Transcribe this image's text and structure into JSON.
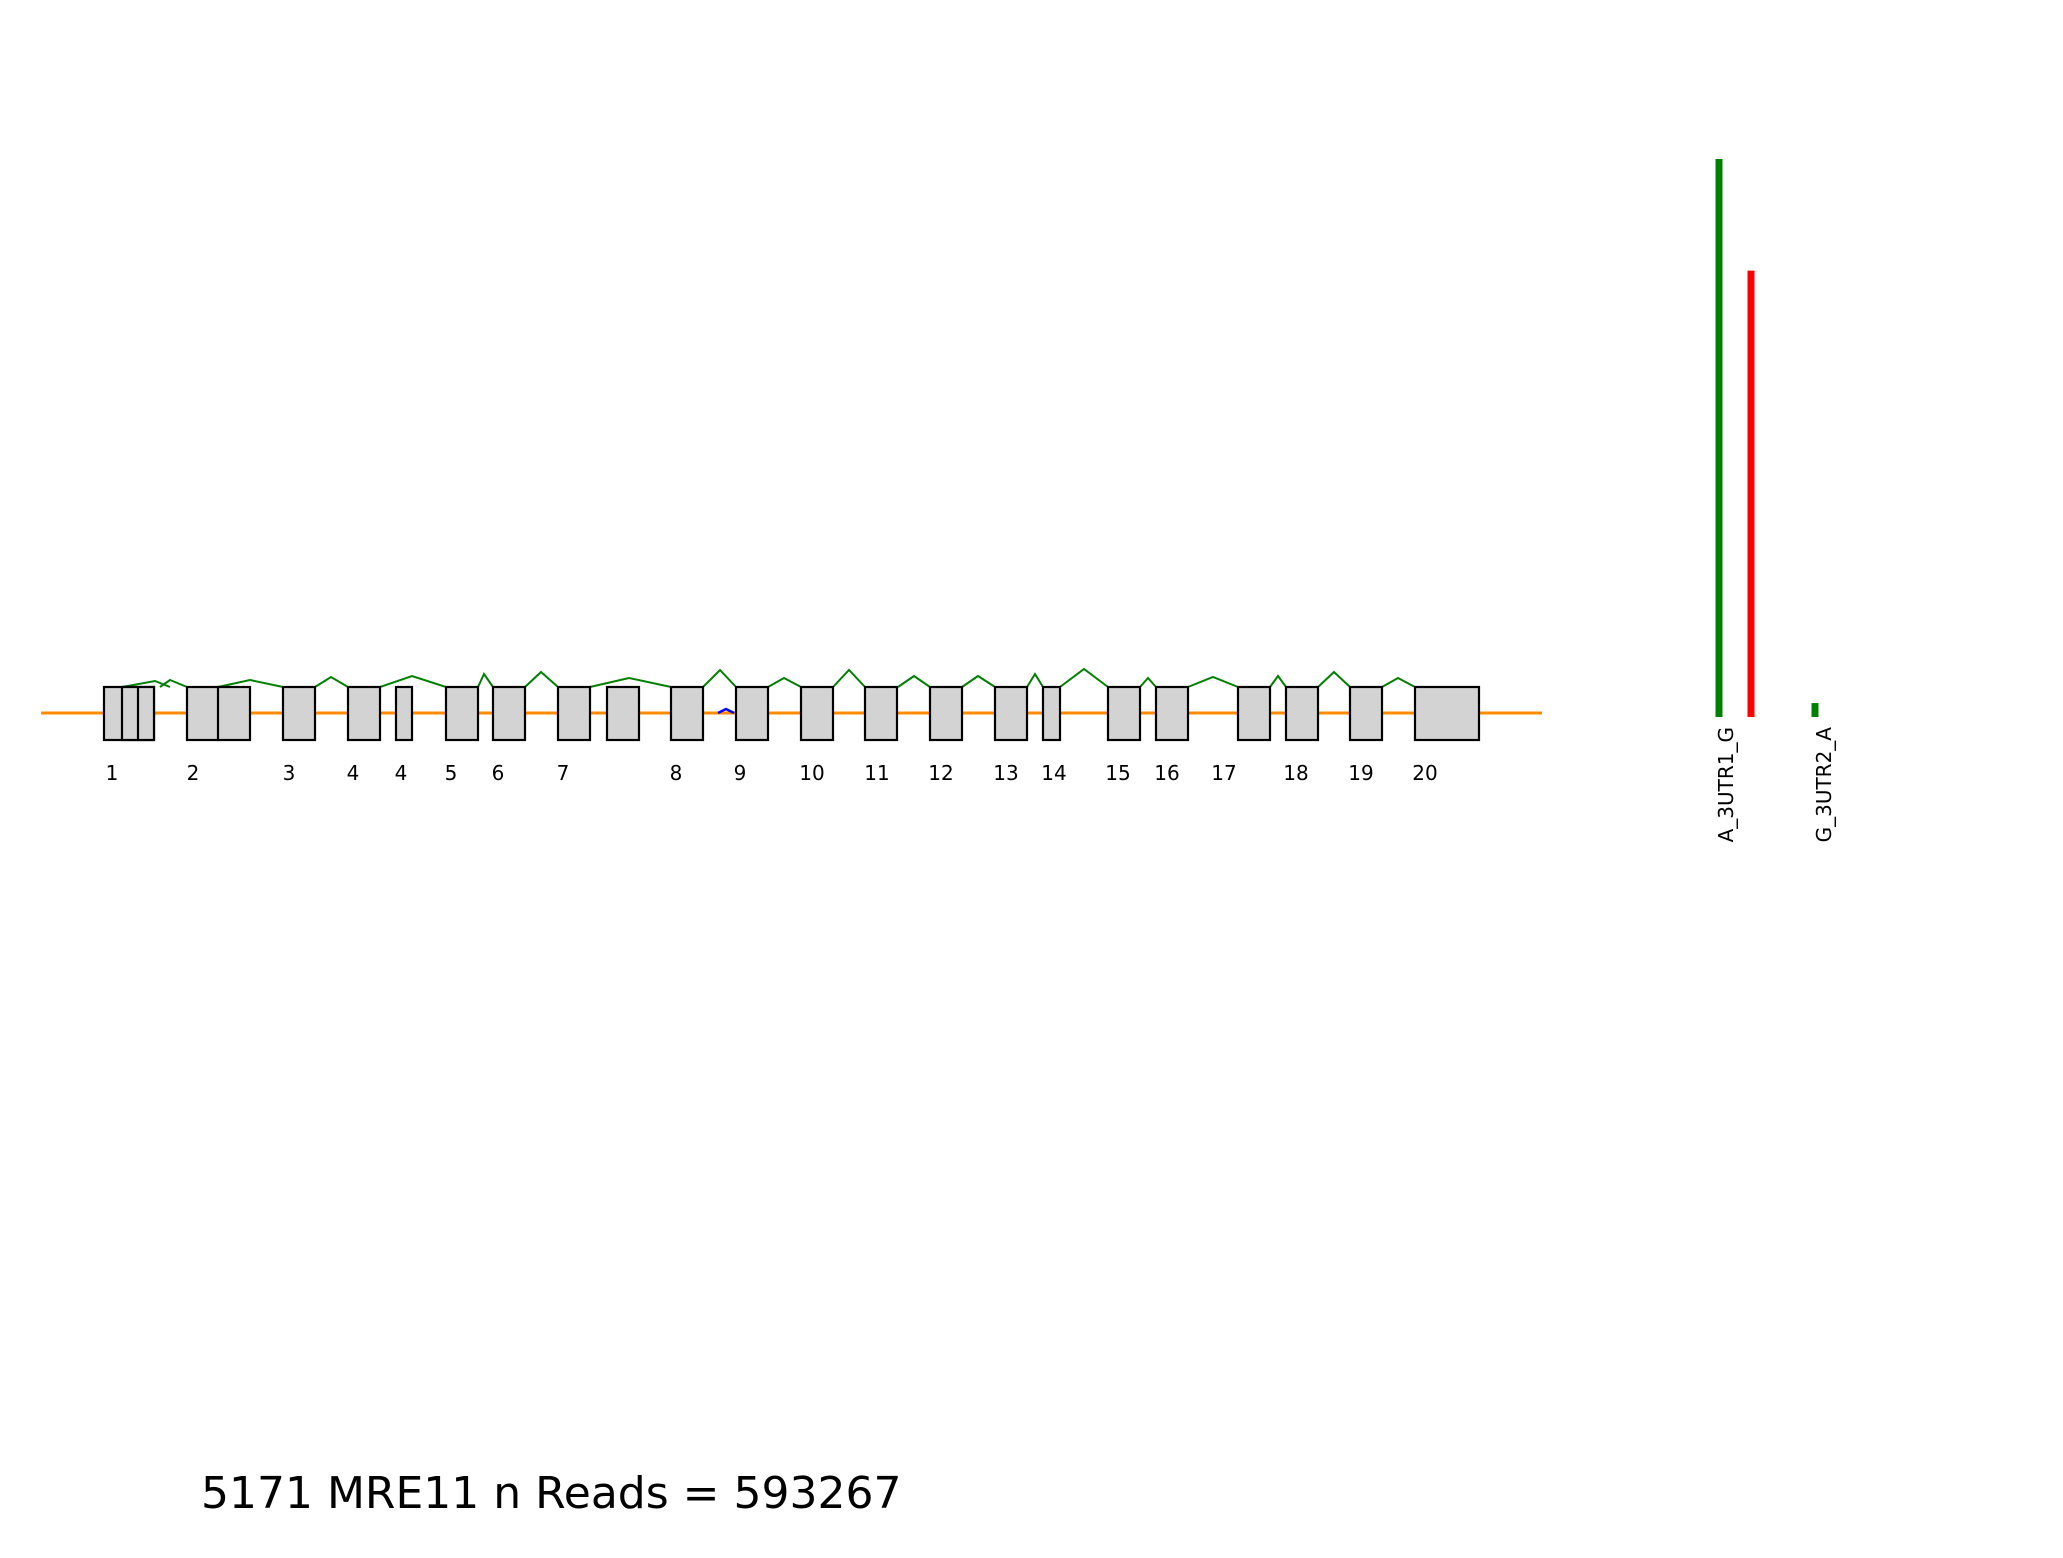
{
  "title": "5171 MRE11 n Reads = 593267",
  "colors": {
    "intron_line": "#ff8c00",
    "exon_fill": "#d3d3d3",
    "exon_stroke": "#000000",
    "junction_main": "#008000",
    "junction_alt": "#0000ff",
    "bar_green": "#008000",
    "bar_red": "#ff0000"
  },
  "exon_labels": [
    "1",
    "2",
    "3",
    "4",
    "4",
    "5",
    "6",
    "7",
    "8",
    "9",
    "10",
    "11",
    "12",
    "13",
    "14",
    "15",
    "16",
    "17",
    "18",
    "19",
    "20"
  ],
  "utr_bars": [
    {
      "label": "A_3UTR1_G",
      "values": [
        {
          "color": "green",
          "value": 1.0
        },
        {
          "color": "red",
          "value": 0.8
        }
      ]
    },
    {
      "label": "G_3UTR2_A",
      "values": [
        {
          "color": "green",
          "value": 0.025
        }
      ]
    }
  ]
}
